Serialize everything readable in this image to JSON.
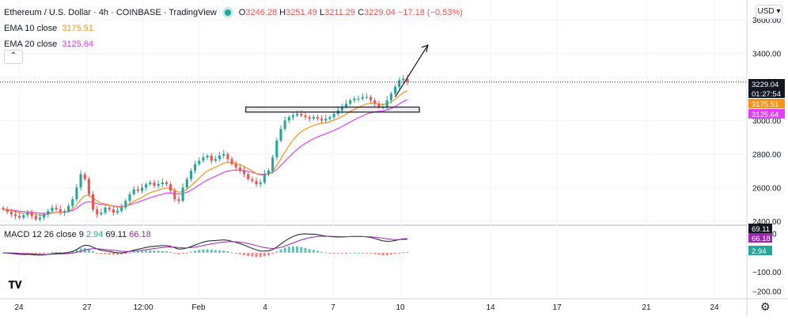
{
  "header": {
    "symbol": "Ethereum / U.S. Dollar · 4h · COINBASE · TradingView",
    "o_label": "O",
    "o_value": "3246.28",
    "h_label": "H",
    "h_value": "3251.49",
    "l_label": "L",
    "l_value": "3211.29",
    "c_label": "C",
    "c_value": "3229.04",
    "change": "−17.18 (−0.53%)"
  },
  "indicators": {
    "ema10": {
      "label": "EMA 10 close",
      "value": "3175.51",
      "color": "#f7931a"
    },
    "ema20": {
      "label": "EMA 20 close",
      "value": "3125.64",
      "color": "#e040fb"
    }
  },
  "macd": {
    "label": "MACD 12 26 close 9",
    "histogram_value": "2.94",
    "macd_value": "69.11",
    "signal_value": "66.18"
  },
  "currency": "USD",
  "colors": {
    "up": "#26a69a",
    "down": "#ef5350",
    "ema10": "#f7931a",
    "ema20": "#e040fb",
    "macd_line": "#131722",
    "signal_line": "#9c27b0",
    "last_price_tag": "#131722"
  },
  "icons": [
    "collapse-chevron-icon",
    "tradingview-logo-icon",
    "settings-gear-icon",
    "live-dot-icon"
  ],
  "chart_data": [
    {
      "type": "line",
      "panel": "price",
      "title": "Ethereum / U.S. Dollar · 4h · COINBASE",
      "x_tick_labels": [
        "24",
        "27",
        "12:00",
        "Feb",
        "4",
        "7",
        "10",
        "14",
        "17",
        "21",
        "24"
      ],
      "y_tick_labels": [
        "3600.00",
        "3400.00",
        "3200.00",
        "3000.00",
        "2800.00",
        "2600.00",
        "2400.00"
      ],
      "ylim": [
        2380,
        3700
      ],
      "series": [
        {
          "name": "ETH/USD close",
          "values": [
            2470,
            2455,
            2440,
            2430,
            2420,
            2435,
            2450,
            2430,
            2410,
            2420,
            2440,
            2460,
            2480,
            2470,
            2450,
            2460,
            2490,
            2530,
            2600,
            2680,
            2650,
            2560,
            2470,
            2440,
            2450,
            2480,
            2470,
            2450,
            2460,
            2480,
            2520,
            2560,
            2590,
            2580,
            2600,
            2620,
            2630,
            2610,
            2620,
            2630,
            2620,
            2580,
            2530,
            2520,
            2600,
            2650,
            2700,
            2740,
            2760,
            2780,
            2790,
            2760,
            2770,
            2790,
            2800,
            2770,
            2740,
            2720,
            2700,
            2680,
            2650,
            2640,
            2620,
            2630,
            2680,
            2700,
            2780,
            2880,
            2950,
            3000,
            3020,
            3030,
            3040,
            3030,
            3020,
            3010,
            3020,
            3010,
            3000,
            3010,
            3020,
            3040,
            3060,
            3080,
            3100,
            3120,
            3130,
            3130,
            3140,
            3140,
            3120,
            3100,
            3080,
            3080,
            3120,
            3160,
            3200,
            3240,
            3250,
            3229.04
          ]
        },
        {
          "name": "EMA 10 close",
          "last": 3175.51
        },
        {
          "name": "EMA 20 close",
          "last": 3125.64
        }
      ],
      "annotations": {
        "price_tags": [
          {
            "text": "3229.04",
            "value": 3229.04
          },
          {
            "text": "01:27:54",
            "value": 3205
          },
          {
            "text": "3175.51",
            "value": 3175.51
          },
          {
            "text": "3125.64",
            "value": 3125.64
          }
        ],
        "support_box": {
          "from_x": 60,
          "to_x": 99,
          "y_low": 3050,
          "y_high": 3080
        },
        "projection_arrow": {
          "x_from": 96,
          "y_from": 3140,
          "x_to": 104,
          "y_to": 3450
        }
      }
    },
    {
      "type": "bar",
      "panel": "macd",
      "title": "MACD 12 26 close 9",
      "y_tick_labels": [
        "100.00",
        "−100.00",
        "−200.00"
      ],
      "ylim": [
        -240,
        140
      ],
      "histogram_last": 2.94,
      "macd_last": 69.11,
      "signal_last": 66.18
    }
  ]
}
